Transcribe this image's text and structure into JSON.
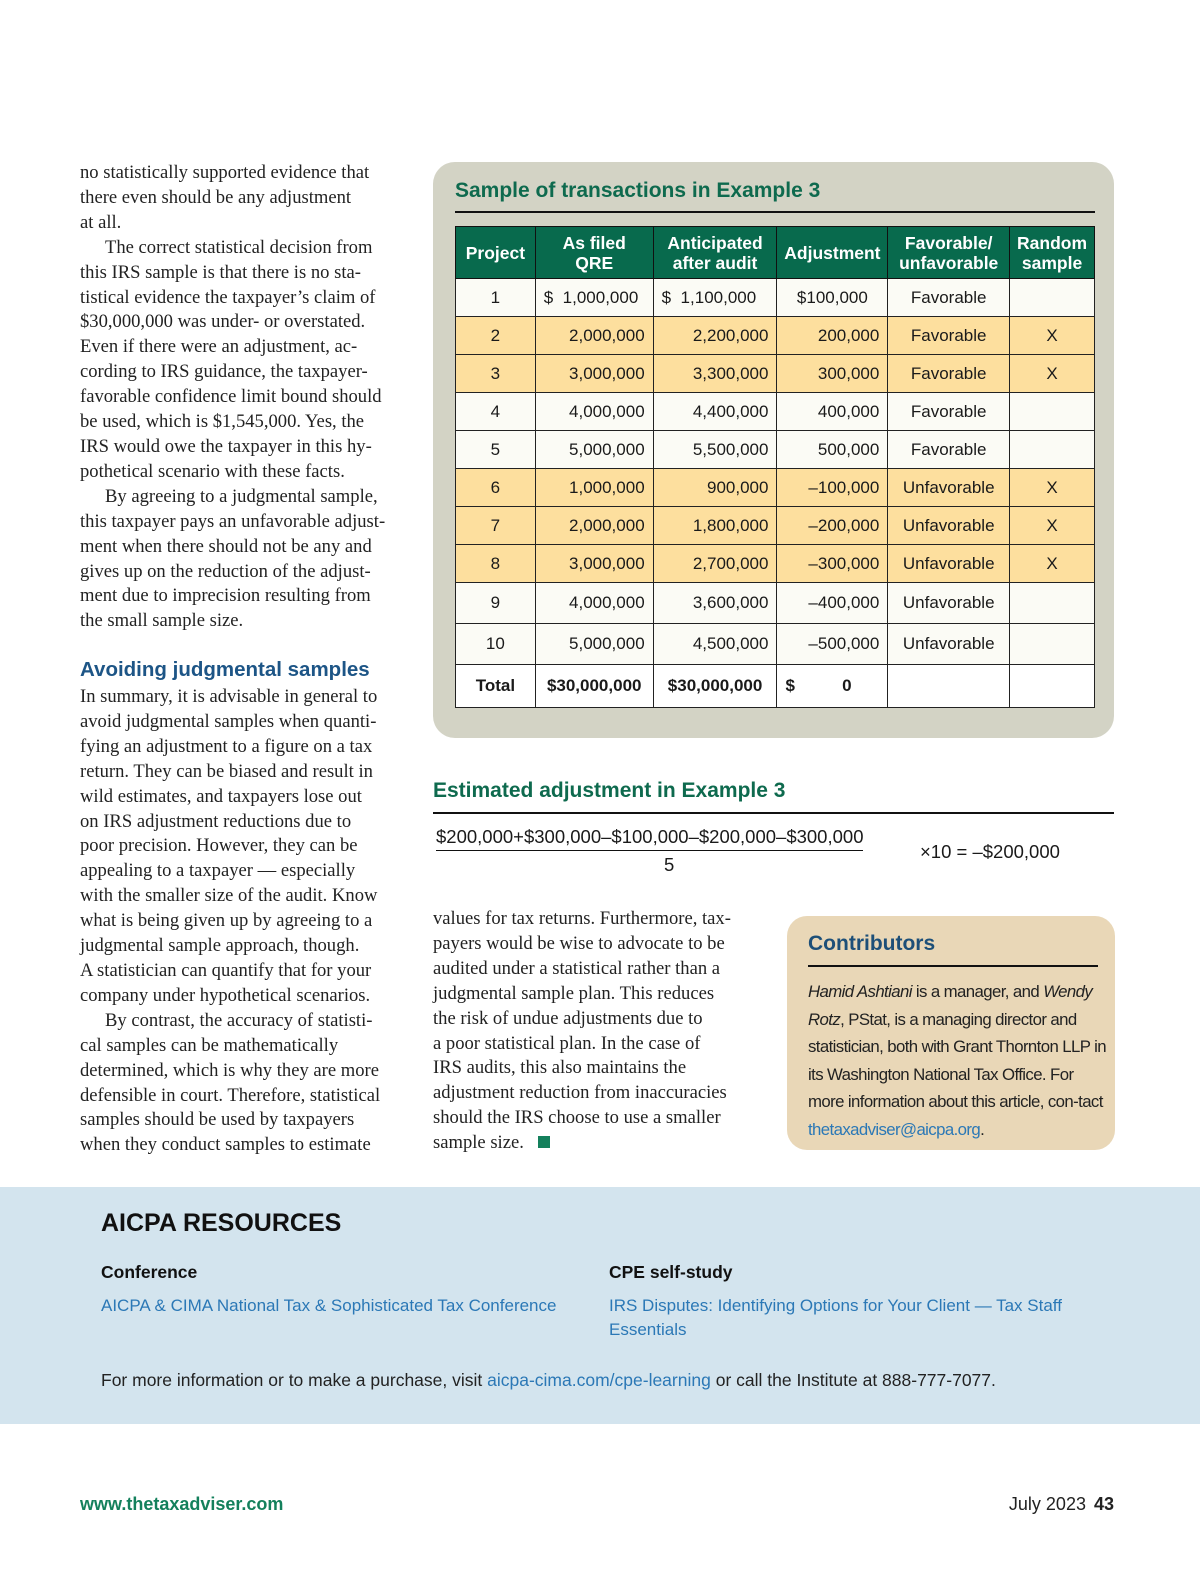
{
  "left_column": {
    "paragraphs_top": [
      {
        "indent": false,
        "lines": [
          "no statistically supported evidence that",
          "there even should be any adjustment",
          "at all."
        ]
      },
      {
        "indent": true,
        "lines": [
          "The correct statistical decision from",
          "this IRS sample is that there is no sta-",
          "tistical evidence the taxpayer’s claim of",
          "$30,000,000 was under- or overstated.",
          "Even if there were an adjustment, ac-",
          "cording to IRS guidance, the taxpayer-",
          "favorable confidence limit bound should",
          "be used, which is $1,545,000. Yes, the",
          "IRS would owe the taxpayer in this hy-",
          "pothetical scenario with these facts."
        ]
      },
      {
        "indent": true,
        "lines": [
          "By agreeing to a judgmental sample,",
          "this taxpayer pays an unfavorable adjust-",
          "ment when there should not be any and",
          "gives up on the reduction of the adjust-",
          "ment due to imprecision resulting from",
          "the small sample size."
        ]
      }
    ],
    "heading": "Avoiding judgmental samples",
    "paragraphs_bottom": [
      {
        "indent": false,
        "lines": [
          "In summary, it is advisable in general to",
          "avoid judgmental samples when quanti-",
          "fying an adjustment to a figure on a tax",
          "return. They can be biased and result in",
          "wild estimates, and taxpayers lose out",
          "on IRS adjustment reductions due to",
          "poor precision. However, they can be",
          "appealing to a taxpayer — especially",
          "with the smaller size of the audit. Know",
          "what is being given up by agreeing to a",
          "judgmental sample approach, though.",
          "A statistician can quantify that for your",
          "company under hypothetical scenarios."
        ]
      },
      {
        "indent": true,
        "lines": [
          "By contrast, the accuracy of statisti-",
          "cal samples can be mathematically",
          "determined, which is why they are more",
          "defensible in court. Therefore, statistical",
          "samples should be used by taxpayers",
          "when they conduct samples to estimate"
        ]
      }
    ]
  },
  "middle_column": {
    "lines": [
      "values for tax returns. Furthermore, tax-",
      "payers would be wise to advocate to be",
      "audited under a statistical rather than a",
      "judgmental sample plan. This reduces",
      "the risk of undue adjustments due to",
      "a poor statistical plan. In the case of",
      "IRS audits, this also maintains the",
      "adjustment reduction from inaccuracies",
      "should the IRS choose to use a smaller",
      "sample size."
    ]
  },
  "sample_table": {
    "title": "Sample of transactions in Example 3",
    "headers": [
      "Project",
      "As filed\nQRE",
      "Anticipated\nafter audit",
      "Adjustment",
      "Favorable/\nunfavorable",
      "Random\nsample"
    ],
    "rows": [
      [
        "1",
        "$  1,000,000",
        "$  1,100,000",
        "$100,000",
        "Favorable",
        ""
      ],
      [
        "2",
        "2,000,000",
        "2,200,000",
        "200,000",
        "Favorable",
        "X"
      ],
      [
        "3",
        "3,000,000",
        "3,300,000",
        "300,000",
        "Favorable",
        "X"
      ],
      [
        "4",
        "4,000,000",
        "4,400,000",
        "400,000",
        "Favorable",
        ""
      ],
      [
        "5",
        "5,000,000",
        "5,500,000",
        "500,000",
        "Favorable",
        ""
      ],
      [
        "6",
        "1,000,000",
        "900,000",
        "–100,000",
        "Unfavorable",
        "X"
      ],
      [
        "7",
        "2,000,000",
        "1,800,000",
        "–200,000",
        "Unfavorable",
        "X"
      ],
      [
        "8",
        "3,000,000",
        "2,700,000",
        "–300,000",
        "Unfavorable",
        "X"
      ],
      [
        "9",
        "4,000,000",
        "3,600,000",
        "–400,000",
        "Unfavorable",
        ""
      ],
      [
        "10",
        "5,000,000",
        "4,500,000",
        "–500,000",
        "Unfavorable",
        ""
      ]
    ],
    "total": [
      "Total",
      "$30,000,000",
      "$30,000,000",
      "$          0",
      "",
      ""
    ],
    "highlight_color": "#fddf9e",
    "header_color": "#086a4d"
  },
  "estimate": {
    "title": "Estimated adjustment in Example 3",
    "numerator": "$200,000+$300,000–$100,000–$200,000–$300,000",
    "denominator": "5",
    "result": "×10 = –$200,000"
  },
  "contributors": {
    "title": "Contributors",
    "name1": "Hamid Ashtiani",
    "text1": " is a manager, and ",
    "name2": "Wendy Rotz",
    "text2": ", PStat, is a managing director and statistician, both with Grant Thornton LLP in its Washington National Tax Office. For more information about this article, con-tact ",
    "email": "thetaxadviser@aicpa.org",
    "end": "."
  },
  "resources": {
    "title": "AICPA RESOURCES",
    "conference_heading": "Conference",
    "conference_link": "AICPA & CIMA National Tax & Sophisticated Tax Conference",
    "cpe_heading": "CPE self-study",
    "cpe_link": "IRS Disputes: Identifying Options for Your Client — Tax Staff Essentials",
    "footer_pre": "For more information or to make a purchase, visit ",
    "footer_link": "aicpa-cima.com/cpe-learning",
    "footer_post": " or call the Institute at 888-777-7077."
  },
  "footer": {
    "url": "www.thetaxadviser.com",
    "date": "July 2023",
    "page": "43"
  }
}
